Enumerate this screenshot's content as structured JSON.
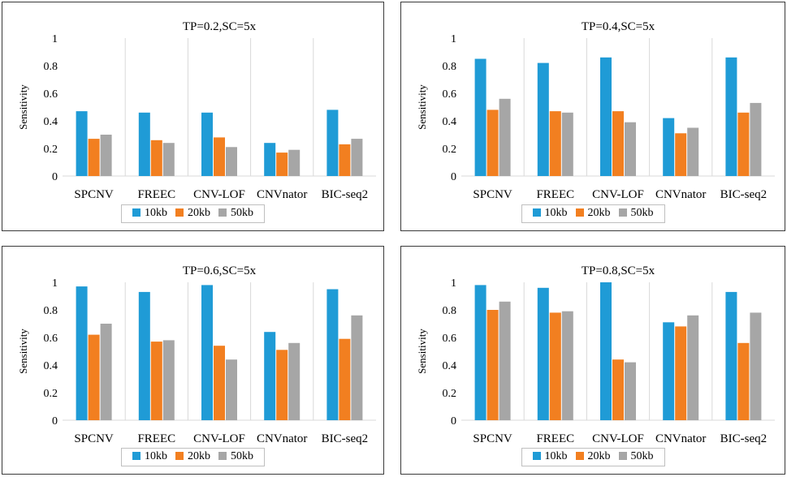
{
  "colors": {
    "10kb": "#1f9bd6",
    "20kb": "#f27f20",
    "50kb": "#a6a6a6"
  },
  "chart_data": [
    {
      "type": "bar",
      "title": "TP=0.2,SC=5x",
      "ylabel": "Sensitivity",
      "ylim": [
        0,
        1
      ],
      "yticks": [
        "0",
        "0.2",
        "0.4",
        "0.6",
        "0.8",
        "1"
      ],
      "categories": [
        "SPCNV",
        "FREEC",
        "CNV-LOF",
        "CNVnator",
        "BIC-seq2"
      ],
      "series": [
        {
          "name": "10kb",
          "values": [
            0.47,
            0.46,
            0.46,
            0.24,
            0.48
          ]
        },
        {
          "name": "20kb",
          "values": [
            0.27,
            0.26,
            0.28,
            0.17,
            0.23
          ]
        },
        {
          "name": "50kb",
          "values": [
            0.3,
            0.24,
            0.21,
            0.19,
            0.27
          ]
        }
      ]
    },
    {
      "type": "bar",
      "title": "TP=0.4,SC=5x",
      "ylabel": "Sensitivity",
      "ylim": [
        0,
        1
      ],
      "yticks": [
        "0",
        "0.2",
        "0.4",
        "0.6",
        "0.8",
        "1"
      ],
      "categories": [
        "SPCNV",
        "FREEC",
        "CNV-LOF",
        "CNVnator",
        "BIC-seq2"
      ],
      "series": [
        {
          "name": "10kb",
          "values": [
            0.85,
            0.82,
            0.86,
            0.42,
            0.86
          ]
        },
        {
          "name": "20kb",
          "values": [
            0.48,
            0.47,
            0.47,
            0.31,
            0.46
          ]
        },
        {
          "name": "50kb",
          "values": [
            0.56,
            0.46,
            0.39,
            0.35,
            0.53
          ]
        }
      ]
    },
    {
      "type": "bar",
      "title": "TP=0.6,SC=5x",
      "ylabel": "Sensitivity",
      "ylim": [
        0,
        1
      ],
      "yticks": [
        "0",
        "0.2",
        "0.4",
        "0.6",
        "0.8",
        "1"
      ],
      "categories": [
        "SPCNV",
        "FREEC",
        "CNV-LOF",
        "CNVnator",
        "BIC-seq2"
      ],
      "series": [
        {
          "name": "10kb",
          "values": [
            0.97,
            0.93,
            0.98,
            0.64,
            0.95
          ]
        },
        {
          "name": "20kb",
          "values": [
            0.62,
            0.57,
            0.54,
            0.51,
            0.59
          ]
        },
        {
          "name": "50kb",
          "values": [
            0.7,
            0.58,
            0.44,
            0.56,
            0.76
          ]
        }
      ]
    },
    {
      "type": "bar",
      "title": "TP=0.8,SC=5x",
      "ylabel": "Sensitivity",
      "ylim": [
        0,
        1
      ],
      "yticks": [
        "0",
        "0.2",
        "0.4",
        "0.6",
        "0.8",
        "1"
      ],
      "categories": [
        "SPCNV",
        "FREEC",
        "CNV-LOF",
        "CNVnator",
        "BIC-seq2"
      ],
      "series": [
        {
          "name": "10kb",
          "values": [
            0.98,
            0.96,
            1.0,
            0.71,
            0.93
          ]
        },
        {
          "name": "20kb",
          "values": [
            0.8,
            0.78,
            0.44,
            0.68,
            0.56
          ]
        },
        {
          "name": "50kb",
          "values": [
            0.86,
            0.79,
            0.42,
            0.76,
            0.78
          ]
        }
      ]
    }
  ]
}
